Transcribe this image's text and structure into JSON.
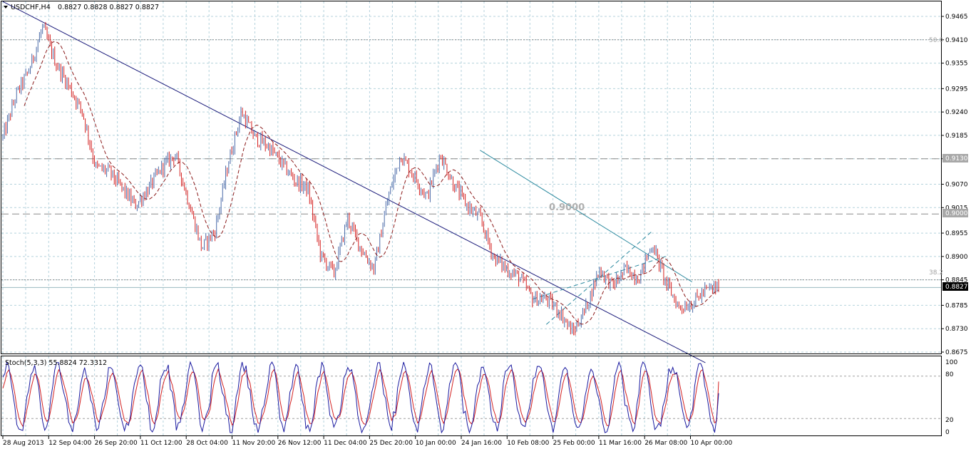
{
  "header": {
    "symbol_timeframe": "USDCHF,H4",
    "prices": "0.8827 0.8828 0.8827 0.8827"
  },
  "indicator": {
    "label": "Stoch(5,3,3) 55.8824 72.3312",
    "levels": [
      "100",
      "80",
      "20",
      "0"
    ]
  },
  "annotations": {
    "big_level_label": "0.9000",
    "fib_50_label": "50.0",
    "fib_382_label": "38.2",
    "tag_9130": "0.9130",
    "tag_9000": "0.9000",
    "tag_current": "0.8827"
  },
  "colors": {
    "background": "#ffffff",
    "grid": "#b4d2dc",
    "bull_candle": "#4a6aa8",
    "bear_candle": "#d42020",
    "moving_average": "#8b1a1a",
    "main_trendline": "#1a1a7a",
    "channel_lines": "#2e8ba0",
    "stoch_main": "#1a1aa0",
    "stoch_signal": "#d42020",
    "price_tag_bg": "#000000"
  },
  "chart_data": {
    "type": "candlestick",
    "symbol": "USDCHF",
    "timeframe": "H4",
    "y_ticks": [
      "0.9465",
      "0.9410",
      "0.9355",
      "0.9295",
      "0.9240",
      "0.9185",
      "0.9130",
      "0.9070",
      "0.9015",
      "0.8955",
      "0.8900",
      "0.8845",
      "0.8785",
      "0.8730",
      "0.8675"
    ],
    "ylim": [
      0.8675,
      0.9465
    ],
    "x_ticks": [
      "28 Aug 2013",
      "12 Sep 04:00",
      "26 Sep 20:00",
      "11 Oct 12:00",
      "28 Oct 04:00",
      "11 Nov 20:00",
      "26 Nov 12:00",
      "11 Dec 04:00",
      "25 Dec 20:00",
      "10 Jan 00:00",
      "24 Jan 16:00",
      "10 Feb 08:00",
      "25 Feb 00:00",
      "11 Mar 16:00",
      "26 Mar 08:00",
      "10 Apr 00:00"
    ],
    "price_path": [
      [
        0,
        0.918
      ],
      [
        1,
        0.928
      ],
      [
        2,
        0.934
      ],
      [
        3,
        0.944
      ],
      [
        4,
        0.9355
      ],
      [
        5,
        0.93
      ],
      [
        6,
        0.924
      ],
      [
        7,
        0.911
      ],
      [
        8,
        0.91
      ],
      [
        9,
        0.906
      ],
      [
        10,
        0.902
      ],
      [
        11,
        0.906
      ],
      [
        12,
        0.911
      ],
      [
        13,
        0.914
      ],
      [
        14,
        0.903
      ],
      [
        15,
        0.892
      ],
      [
        16,
        0.896
      ],
      [
        17,
        0.912
      ],
      [
        18,
        0.924
      ],
      [
        19,
        0.918
      ],
      [
        20,
        0.916
      ],
      [
        21,
        0.912
      ],
      [
        22,
        0.908
      ],
      [
        23,
        0.906
      ],
      [
        24,
        0.89
      ],
      [
        25,
        0.886
      ],
      [
        26,
        0.899
      ],
      [
        27,
        0.892
      ],
      [
        28,
        0.887
      ],
      [
        29,
        0.903
      ],
      [
        30,
        0.914
      ],
      [
        31,
        0.909
      ],
      [
        32,
        0.904
      ],
      [
        33,
        0.914
      ],
      [
        34,
        0.907
      ],
      [
        35,
        0.902
      ],
      [
        36,
        0.899
      ],
      [
        37,
        0.89
      ],
      [
        38,
        0.887
      ],
      [
        39,
        0.885
      ],
      [
        40,
        0.88
      ],
      [
        41,
        0.88
      ],
      [
        42,
        0.877
      ],
      [
        43,
        0.872
      ],
      [
        44,
        0.878
      ],
      [
        45,
        0.887
      ],
      [
        46,
        0.883
      ],
      [
        47,
        0.887
      ],
      [
        48,
        0.885
      ],
      [
        49,
        0.893
      ],
      [
        50,
        0.884
      ],
      [
        51,
        0.878
      ],
      [
        52,
        0.879
      ],
      [
        53,
        0.882
      ],
      [
        54,
        0.8827
      ]
    ],
    "horizontal_levels": [
      {
        "price": 0.941,
        "style": "dotted",
        "label": "50.0"
      },
      {
        "price": 0.913,
        "style": "dashed",
        "label": "0.9130"
      },
      {
        "price": 0.9,
        "style": "dashed",
        "label": "0.9000"
      },
      {
        "price": 0.8845,
        "style": "dotted",
        "label": "38.2"
      },
      {
        "price": 0.8827,
        "style": "solid",
        "label": "0.8827"
      }
    ],
    "trendlines": [
      {
        "name": "main_down",
        "from": [
          0,
          0.95
        ],
        "to": [
          53,
          0.865
        ]
      },
      {
        "name": "channel_upper",
        "from": [
          36,
          0.915
        ],
        "to": [
          52,
          0.884
        ]
      },
      {
        "name": "channel_mid",
        "from": [
          40,
          0.88
        ],
        "to": [
          50,
          0.89
        ]
      },
      {
        "name": "channel_lower",
        "from": [
          41,
          0.874
        ],
        "to": [
          49,
          0.896
        ]
      }
    ],
    "stochastic": {
      "params": "5,3,3",
      "main": 55.8824,
      "signal": 72.3312,
      "ylim": [
        0,
        100
      ],
      "levels": [
        20,
        80
      ]
    }
  }
}
